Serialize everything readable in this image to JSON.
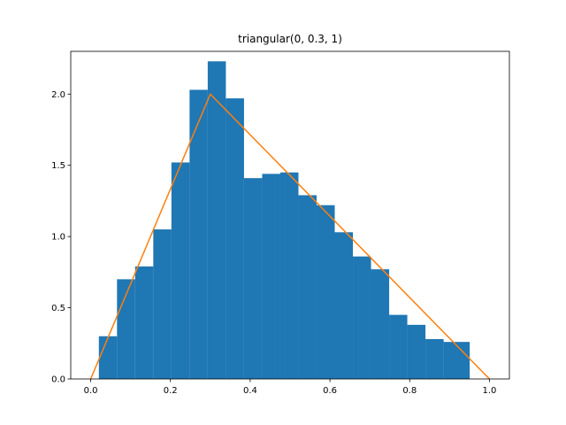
{
  "chart_data": {
    "type": "bar",
    "title": "triangular(0, 0.3, 1)",
    "xlabel": "",
    "ylabel": "",
    "xlim": [
      -0.05,
      1.05
    ],
    "ylim": [
      0,
      2.3
    ],
    "grid": false,
    "x_ticks": [
      0.0,
      0.2,
      0.4,
      0.6,
      0.8,
      1.0
    ],
    "x_tick_labels": [
      "0.0",
      "0.2",
      "0.4",
      "0.6",
      "0.8",
      "1.0"
    ],
    "y_ticks": [
      0.0,
      0.5,
      1.0,
      1.5,
      2.0
    ],
    "y_tick_labels": [
      "0.0",
      "0.5",
      "1.0",
      "1.5",
      "2.0"
    ],
    "histogram": {
      "bin_edges": [
        0.0205,
        0.066,
        0.1115,
        0.157,
        0.2025,
        0.248,
        0.2935,
        0.339,
        0.3845,
        0.43,
        0.4755,
        0.521,
        0.5665,
        0.612,
        0.6575,
        0.703,
        0.7485,
        0.794,
        0.8395,
        0.885,
        0.9505
      ],
      "values": [
        0.3,
        0.7,
        0.79,
        1.05,
        1.52,
        2.03,
        2.23,
        1.97,
        1.41,
        1.44,
        1.45,
        1.29,
        1.22,
        1.03,
        0.86,
        0.77,
        0.45,
        0.38,
        0.28,
        0.26
      ],
      "color": "#1f77b4"
    },
    "series": [
      {
        "type": "line",
        "x": [
          0.0,
          0.3,
          1.0
        ],
        "values": [
          0.0,
          2.0,
          0.0
        ],
        "color": "#ff7f0e"
      }
    ]
  }
}
